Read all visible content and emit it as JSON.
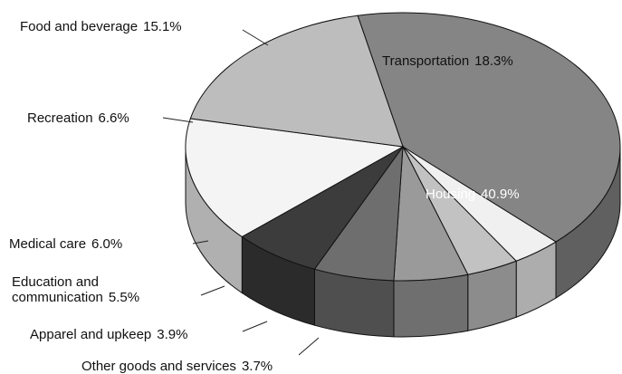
{
  "chart_data": {
    "type": "pie",
    "categories": [
      "Housing",
      "Other goods and services",
      "Apparel and upkeep",
      "Education and communication",
      "Medical care",
      "Recreation",
      "Food and beverage",
      "Transportation"
    ],
    "values": [
      40.9,
      3.7,
      3.9,
      5.5,
      6.0,
      6.6,
      15.1,
      18.3
    ],
    "value_labels": [
      "40.9%",
      "3.7%",
      "3.9%",
      "5.5%",
      "6.0%",
      "6.6%",
      "15.1%",
      "18.3%"
    ],
    "colors": [
      "#858585",
      "#f0f0f0",
      "#c2c2c2",
      "#9a9a9a",
      "#6e6e6e",
      "#3c3c3c",
      "#f4f4f4",
      "#bdbdbd"
    ]
  }
}
